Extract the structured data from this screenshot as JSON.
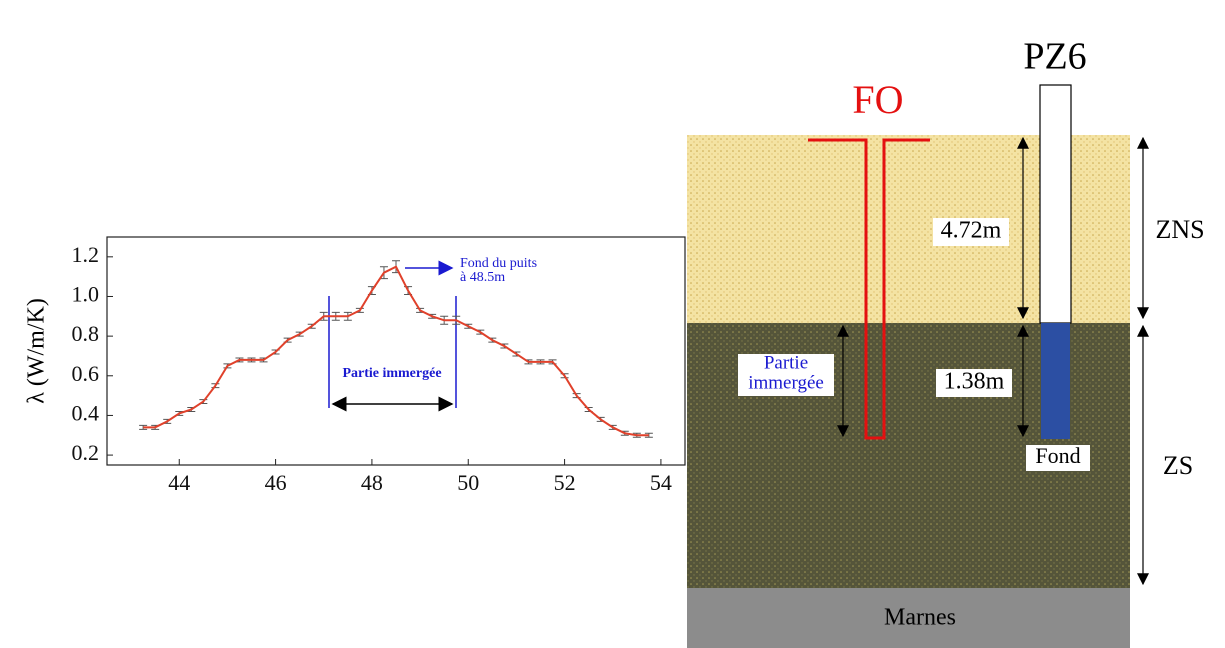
{
  "chart_data": {
    "type": "line",
    "y_label": "λ (W/m/K)",
    "x": [
      43.25,
      43.5,
      43.75,
      44.0,
      44.25,
      44.5,
      44.75,
      45.0,
      45.25,
      45.5,
      45.75,
      46.0,
      46.25,
      46.5,
      46.75,
      47.0,
      47.25,
      47.5,
      47.75,
      48.0,
      48.25,
      48.5,
      48.75,
      49.0,
      49.25,
      49.5,
      49.75,
      50.0,
      50.25,
      50.5,
      50.75,
      51.0,
      51.25,
      51.5,
      51.75,
      52.0,
      52.25,
      52.5,
      52.75,
      53.0,
      53.25,
      53.5,
      53.75
    ],
    "series": [
      {
        "color": "#e0412b",
        "error_color": "#555555",
        "values": [
          0.34,
          0.34,
          0.37,
          0.41,
          0.43,
          0.47,
          0.55,
          0.65,
          0.68,
          0.68,
          0.68,
          0.72,
          0.78,
          0.81,
          0.85,
          0.9,
          0.9,
          0.9,
          0.93,
          1.03,
          1.12,
          1.15,
          1.03,
          0.93,
          0.9,
          0.88,
          0.88,
          0.85,
          0.82,
          0.78,
          0.75,
          0.71,
          0.67,
          0.67,
          0.67,
          0.6,
          0.5,
          0.43,
          0.38,
          0.34,
          0.31,
          0.3,
          0.3
        ],
        "errors": [
          0.01,
          0.01,
          0.01,
          0.01,
          0.01,
          0.01,
          0.01,
          0.01,
          0.01,
          0.01,
          0.01,
          0.01,
          0.01,
          0.01,
          0.01,
          0.02,
          0.02,
          0.02,
          0.01,
          0.02,
          0.03,
          0.03,
          0.02,
          0.01,
          0.01,
          0.02,
          0.02,
          0.01,
          0.01,
          0.01,
          0.01,
          0.01,
          0.01,
          0.01,
          0.01,
          0.01,
          0.01,
          0.01,
          0.01,
          0.01,
          0.01,
          0.01,
          0.01
        ]
      }
    ],
    "xlim": [
      42.5,
      54.5
    ],
    "ylim": [
      0.15,
      1.3
    ],
    "xticks": [
      44,
      46,
      48,
      50,
      52,
      54
    ],
    "yticks": [
      0.2,
      0.4,
      0.6,
      0.8,
      {
        "value": 1,
        "label": "1.0"
      },
      1.2
    ],
    "annotations": [
      "Fond du puits",
      "à 48.5m",
      "Partie immergée"
    ]
  },
  "diagram": {
    "fo": "FO",
    "pz6": "PZ6",
    "zns": "ZNS",
    "zs": "ZS",
    "depth_zns": "4.72m",
    "depth_zs": "1.38m",
    "immersed": [
      "Partie",
      "immergée"
    ],
    "bottom": "Fond",
    "marl": "Marnes"
  }
}
